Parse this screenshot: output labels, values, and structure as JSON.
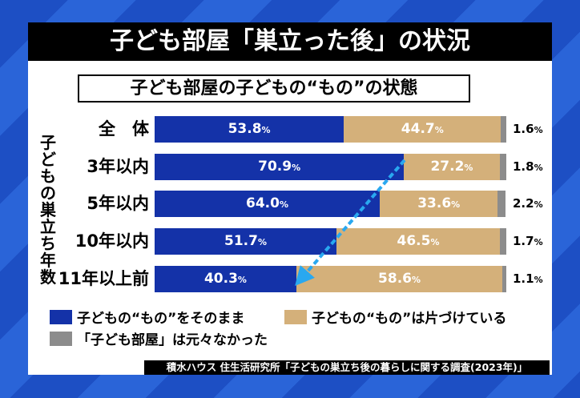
{
  "title": "子ども部屋「巣立った後」の状況",
  "chart_data": {
    "type": "bar",
    "stacked": true,
    "orientation": "horizontal",
    "title": "子ども部屋の子どもの“もの”の状態",
    "ylabel": "子どもの巣立ち年数",
    "categories": [
      "全　体",
      "3年以内",
      "5年以内",
      "10年以内",
      "11年以上前"
    ],
    "series": [
      {
        "name": "子どもの“もの”をそのまま",
        "color": "#1432a8",
        "values": [
          53.8,
          70.9,
          64.0,
          51.7,
          40.3
        ]
      },
      {
        "name": "子どもの“もの”は片づけている",
        "color": "#d4b07a",
        "values": [
          44.7,
          27.2,
          33.6,
          46.5,
          58.6
        ]
      },
      {
        "name": "「子ども部屋」は元々なかった",
        "color": "#8c8c8c",
        "values": [
          1.6,
          1.8,
          2.2,
          1.7,
          1.1
        ]
      }
    ],
    "unit": "%",
    "legend_position": "bottom",
    "annotation": "dashed arrow from 3年以内 to 11年以上前"
  },
  "source": "積水ハウス 住生活研究所「子どもの巣立ち後の暮らしに関する調査(2023年)」"
}
